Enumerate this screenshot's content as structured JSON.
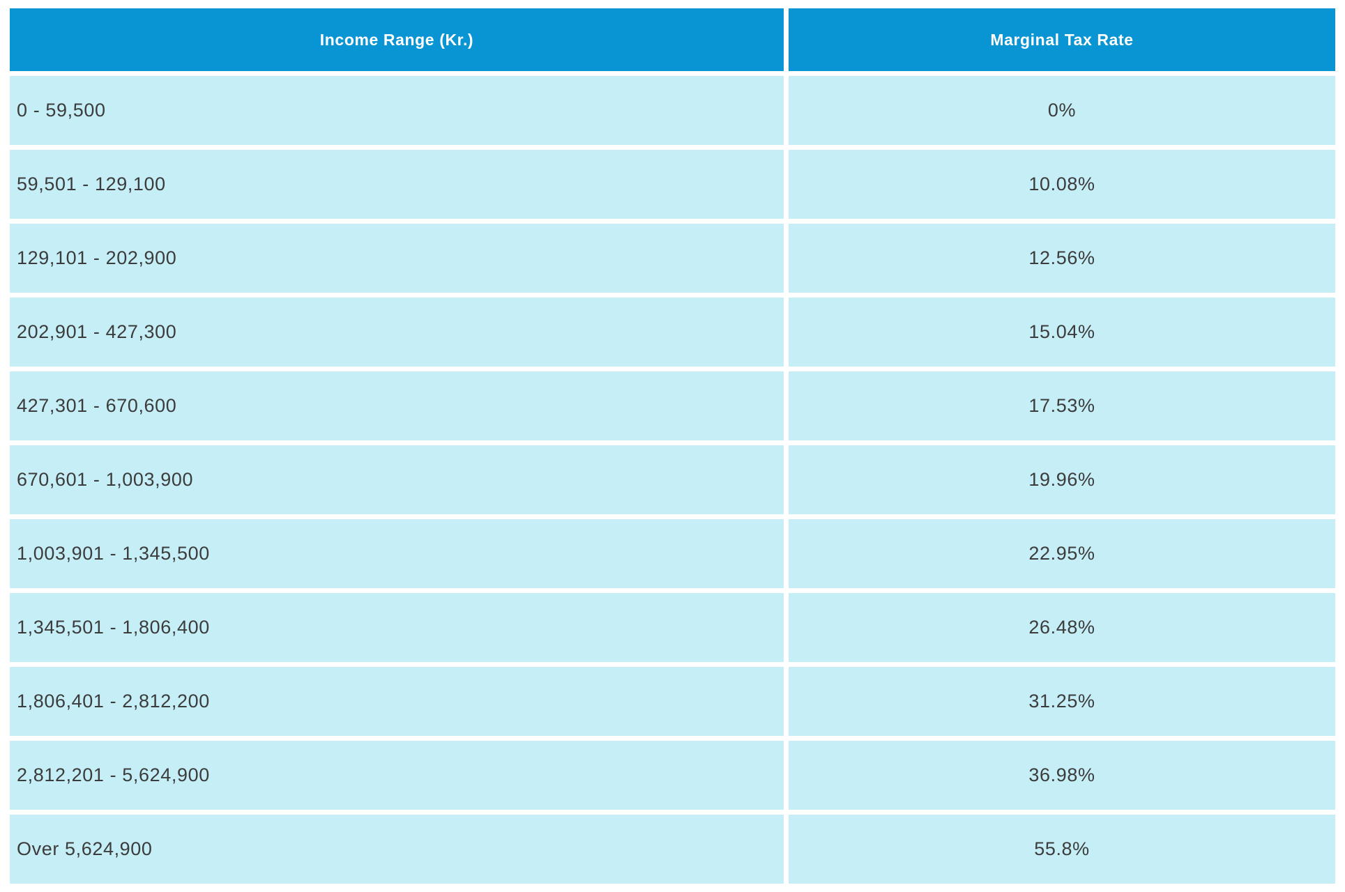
{
  "colors": {
    "header_bg": "#0994d4",
    "row_bg": "#c5eef6",
    "header_text": "#ffffff",
    "cell_text": "#3c3c3c",
    "page_bg": "#ffffff"
  },
  "table": {
    "columns": [
      {
        "label": "Income Range (Kr.)"
      },
      {
        "label": "Marginal Tax Rate"
      }
    ],
    "rows": [
      {
        "income_range": "0 - 59,500",
        "marginal_tax_rate": "0%"
      },
      {
        "income_range": "59,501 - 129,100",
        "marginal_tax_rate": "10.08%"
      },
      {
        "income_range": "129,101 - 202,900",
        "marginal_tax_rate": "12.56%"
      },
      {
        "income_range": "202,901 - 427,300",
        "marginal_tax_rate": "15.04%"
      },
      {
        "income_range": "427,301 - 670,600",
        "marginal_tax_rate": "17.53%"
      },
      {
        "income_range": "670,601 - 1,003,900",
        "marginal_tax_rate": "19.96%"
      },
      {
        "income_range": "1,003,901 - 1,345,500",
        "marginal_tax_rate": "22.95%"
      },
      {
        "income_range": "1,345,501 - 1,806,400",
        "marginal_tax_rate": "26.48%"
      },
      {
        "income_range": "1,806,401 - 2,812,200",
        "marginal_tax_rate": "31.25%"
      },
      {
        "income_range": "2,812,201 - 5,624,900",
        "marginal_tax_rate": "36.98%"
      },
      {
        "income_range": "Over 5,624,900",
        "marginal_tax_rate": "55.8%"
      }
    ]
  },
  "chart_data": {
    "type": "table",
    "title": "",
    "columns": [
      "Income Range (Kr.)",
      "Marginal Tax Rate"
    ],
    "rows": [
      [
        "0 - 59,500",
        "0%"
      ],
      [
        "59,501 - 129,100",
        "10.08%"
      ],
      [
        "129,101 - 202,900",
        "12.56%"
      ],
      [
        "202,901 - 427,300",
        "15.04%"
      ],
      [
        "427,301 - 670,600",
        "17.53%"
      ],
      [
        "670,601 - 1,003,900",
        "19.96%"
      ],
      [
        "1,003,901 - 1,345,500",
        "22.95%"
      ],
      [
        "1,345,501 - 1,806,400",
        "26.48%"
      ],
      [
        "1,806,401 - 2,812,200",
        "31.25%"
      ],
      [
        "2,812,201 - 5,624,900",
        "36.98%"
      ],
      [
        "Over 5,624,900",
        "55.8%"
      ]
    ],
    "marginal_rate_values_percent": [
      0,
      10.08,
      12.56,
      15.04,
      17.53,
      19.96,
      22.95,
      26.48,
      31.25,
      36.98,
      55.8
    ]
  }
}
